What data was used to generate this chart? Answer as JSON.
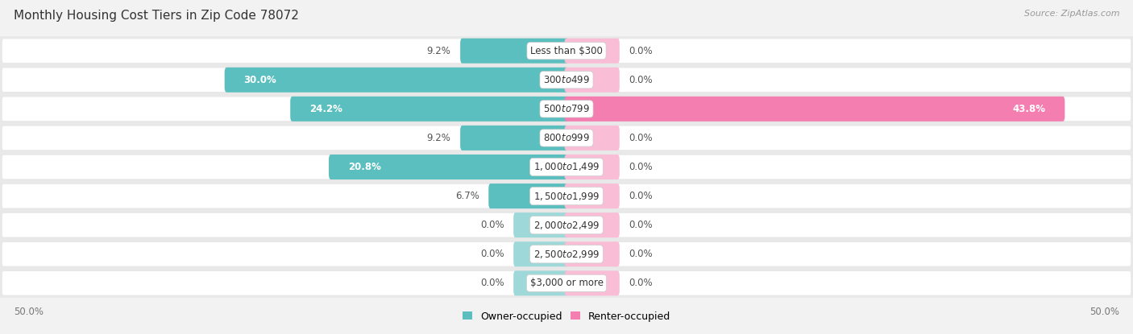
{
  "title": "Monthly Housing Cost Tiers in Zip Code 78072",
  "source": "Source: ZipAtlas.com",
  "categories": [
    "Less than $300",
    "$300 to $499",
    "$500 to $799",
    "$800 to $999",
    "$1,000 to $1,499",
    "$1,500 to $1,999",
    "$2,000 to $2,499",
    "$2,500 to $2,999",
    "$3,000 or more"
  ],
  "owner_values": [
    9.2,
    30.0,
    24.2,
    9.2,
    20.8,
    6.7,
    0.0,
    0.0,
    0.0
  ],
  "renter_values": [
    0.0,
    0.0,
    43.8,
    0.0,
    0.0,
    0.0,
    0.0,
    0.0,
    0.0
  ],
  "owner_color": "#5bbfbf",
  "renter_color": "#f47eb0",
  "owner_stub_color": "#9ed8d8",
  "renter_stub_color": "#f9bdd5",
  "row_bg_color": "#f0f0f0",
  "row_inner_color": "#ffffff",
  "axis_limit": 50.0,
  "background_color": "#f2f2f2",
  "stub_size": 4.5,
  "title_fontsize": 11,
  "label_fontsize": 8.5,
  "val_fontsize": 8.5,
  "legend_fontsize": 9,
  "axis_fontsize": 8.5
}
